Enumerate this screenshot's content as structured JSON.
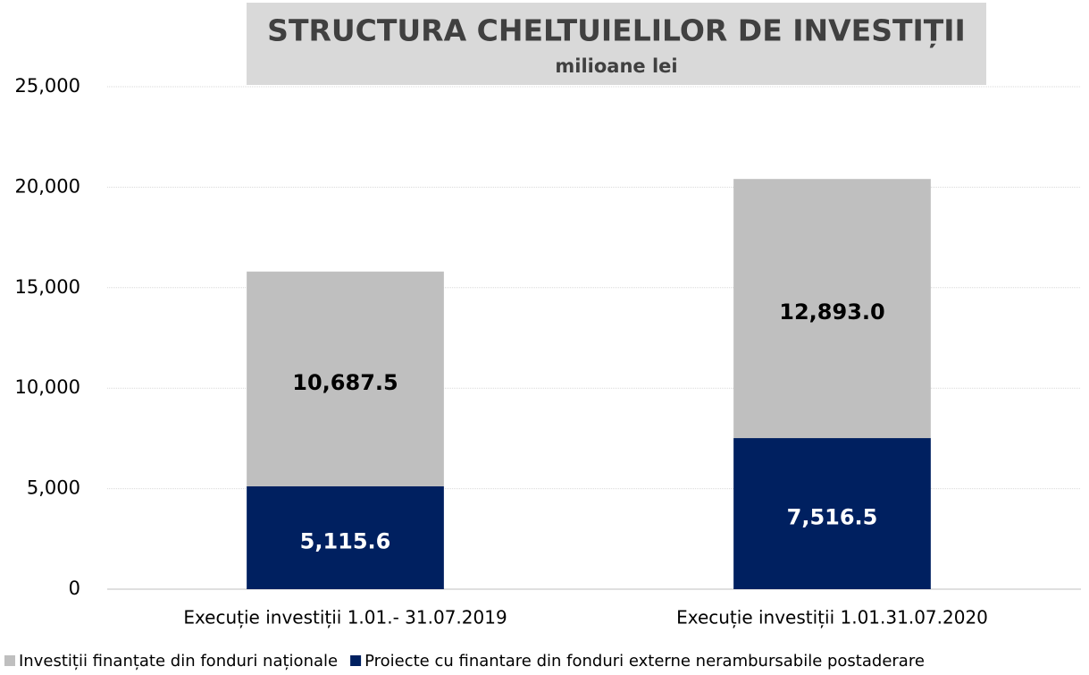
{
  "chart_data": {
    "type": "stacked_bar",
    "title": "STRUCTURA CHELTUIELILOR DE INVESTIȚII",
    "subtitle": "milioane lei",
    "categories": [
      "Execuție investiții 1.01.- 31.07.2019",
      "Execuție investiții 1.01.31.07.2020"
    ],
    "series": [
      {
        "name": "Investiții finanțate din fonduri naționale",
        "color": "#bfbfbf",
        "label_color": "#000000",
        "values": [
          10687.5,
          12893.0
        ],
        "value_labels": [
          "10,687.5",
          "12,893.0"
        ]
      },
      {
        "name": "Proiecte cu finantare din fonduri externe nerambursabile postaderare",
        "color": "#002060",
        "label_color": "#ffffff",
        "values": [
          5115.6,
          7516.5
        ],
        "value_labels": [
          "5,115.6",
          "7,516.5"
        ]
      }
    ],
    "ylim": [
      0,
      25000
    ],
    "yticks": [
      0,
      {
        "value": 5000,
        "label": "5,000"
      },
      {
        "value": 10000,
        "label": "10,000"
      },
      {
        "value": 15000,
        "label": "15,000"
      },
      {
        "value": 20000,
        "label": "20,000"
      },
      {
        "value": 25000,
        "label": "25,000"
      }
    ],
    "grid": true,
    "legend": "bottom"
  }
}
